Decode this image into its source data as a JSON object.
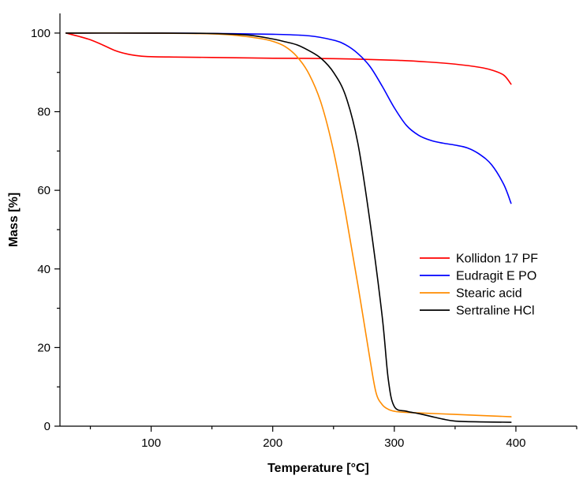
{
  "chart_data": {
    "type": "line",
    "title": "",
    "xlabel": "Temperature [°C]",
    "ylabel": "Mass [%]",
    "xlim": [
      25,
      450
    ],
    "ylim": [
      0,
      105
    ],
    "x_ticks_major": [
      100,
      200,
      300,
      400
    ],
    "x_ticks_minor": [
      50,
      150,
      250,
      350,
      450
    ],
    "y_ticks_major": [
      0,
      20,
      40,
      60,
      80,
      100
    ],
    "y_ticks_minor": [
      10,
      30,
      50,
      70,
      90
    ],
    "grid": false,
    "legend_position": "center-right",
    "series": [
      {
        "name": "Kollidon 17 PF",
        "color": "#ff0000",
        "x": [
          30,
          40,
          50,
          60,
          70,
          80,
          90,
          100,
          120,
          150,
          200,
          250,
          300,
          330,
          350,
          370,
          380,
          390,
          396
        ],
        "y": [
          100,
          99.2,
          98.3,
          97.0,
          95.6,
          94.7,
          94.2,
          94.0,
          93.9,
          93.8,
          93.6,
          93.5,
          93.1,
          92.6,
          92.1,
          91.3,
          90.6,
          89.3,
          87.0
        ]
      },
      {
        "name": "Eudragit E PO",
        "color": "#0000ff",
        "x": [
          30,
          100,
          150,
          200,
          230,
          250,
          260,
          270,
          280,
          290,
          300,
          310,
          320,
          330,
          340,
          350,
          360,
          370,
          380,
          390,
          396
        ],
        "y": [
          100,
          100,
          99.9,
          99.7,
          99.3,
          98.2,
          97.0,
          94.8,
          91.5,
          86.5,
          81.0,
          76.5,
          74.0,
          72.7,
          72.0,
          71.5,
          70.8,
          69.2,
          66.5,
          61.5,
          56.7
        ]
      },
      {
        "name": "Stearic acid",
        "color": "#ff8c00",
        "x": [
          30,
          100,
          150,
          170,
          190,
          200,
          210,
          220,
          230,
          240,
          250,
          260,
          270,
          280,
          285,
          290,
          295,
          300,
          310,
          350,
          396
        ],
        "y": [
          100,
          100,
          99.8,
          99.4,
          98.6,
          97.9,
          96.6,
          94.0,
          89.5,
          82.0,
          70.0,
          54.0,
          36.0,
          17.0,
          8.5,
          5.5,
          4.3,
          3.8,
          3.5,
          3.0,
          2.4
        ]
      },
      {
        "name": "Sertraline HCl",
        "color": "#000000",
        "x": [
          30,
          100,
          150,
          180,
          200,
          210,
          220,
          230,
          240,
          250,
          260,
          270,
          280,
          290,
          295,
          300,
          310,
          320,
          330,
          340,
          350,
          370,
          396
        ],
        "y": [
          100,
          100,
          99.9,
          99.5,
          98.5,
          97.8,
          97.0,
          95.5,
          93.5,
          90.0,
          84.0,
          72.0,
          52.0,
          28.0,
          12.0,
          5.0,
          3.8,
          3.2,
          2.5,
          1.8,
          1.3,
          1.1,
          1.0
        ]
      }
    ]
  }
}
